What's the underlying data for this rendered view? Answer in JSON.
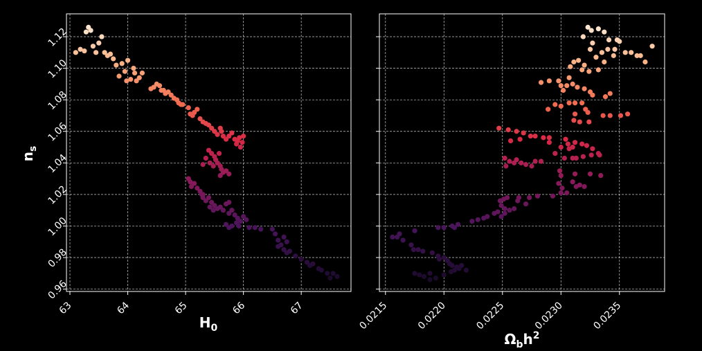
{
  "chart_data": [
    {
      "type": "scatter",
      "xlabel": {
        "main": "H",
        "sub": "0"
      },
      "ylabel": {
        "main": "n",
        "sub": "s"
      },
      "xlim": [
        62.94,
        67.86
      ],
      "ylim": [
        0.9585,
        1.1345
      ],
      "xticks": [
        "63",
        "64",
        "65",
        "66",
        "67"
      ],
      "xtick_values": [
        63,
        64,
        65,
        66,
        67
      ],
      "yticks": [
        "0.96",
        "0.98",
        "1.00",
        "1.02",
        "1.04",
        "1.06",
        "1.08",
        "1.10",
        "1.12"
      ],
      "ytick_values": [
        0.96,
        0.98,
        1.0,
        1.02,
        1.04,
        1.06,
        1.08,
        1.1,
        1.12
      ],
      "grid": true,
      "color_scale": "rocket (dark purple = low n_s, cream = high n_s)",
      "points": [
        [
          63.1,
          1.11
        ],
        [
          63.18,
          1.112
        ],
        [
          63.25,
          1.111
        ],
        [
          63.28,
          1.123
        ],
        [
          63.32,
          1.126
        ],
        [
          63.36,
          1.124
        ],
        [
          63.4,
          1.114
        ],
        [
          63.45,
          1.11
        ],
        [
          63.5,
          1.116
        ],
        [
          63.55,
          1.12
        ],
        [
          63.6,
          1.11
        ],
        [
          63.65,
          1.108
        ],
        [
          63.7,
          1.109
        ],
        [
          63.75,
          1.106
        ],
        [
          63.8,
          1.102
        ],
        [
          63.85,
          1.095
        ],
        [
          63.9,
          1.103
        ],
        [
          63.95,
          1.098
        ],
        [
          64.0,
          1.105
        ],
        [
          64.05,
          1.093
        ],
        [
          64.1,
          1.1
        ],
        [
          64.12,
          1.097
        ],
        [
          64.15,
          1.092
        ],
        [
          64.2,
          1.094
        ],
        [
          64.25,
          1.097
        ],
        [
          63.98,
          1.092
        ],
        [
          64.4,
          1.087
        ],
        [
          64.45,
          1.088
        ],
        [
          64.5,
          1.09
        ],
        [
          64.55,
          1.089
        ],
        [
          64.58,
          1.086
        ],
        [
          64.62,
          1.086
        ],
        [
          64.65,
          1.084
        ],
        [
          64.7,
          1.085
        ],
        [
          64.75,
          1.083
        ],
        [
          64.8,
          1.081
        ],
        [
          64.85,
          1.08
        ],
        [
          64.88,
          1.078
        ],
        [
          64.92,
          1.077
        ],
        [
          64.95,
          1.077
        ],
        [
          65.05,
          1.075
        ],
        [
          65.08,
          1.071
        ],
        [
          65.12,
          1.07
        ],
        [
          65.15,
          1.072
        ],
        [
          65.2,
          1.074
        ],
        [
          65.25,
          1.068
        ],
        [
          65.3,
          1.066
        ],
        [
          65.35,
          1.065
        ],
        [
          65.4,
          1.064
        ],
        [
          65.45,
          1.062
        ],
        [
          65.5,
          1.06
        ],
        [
          65.55,
          1.058
        ],
        [
          65.6,
          1.062
        ],
        [
          65.62,
          1.06
        ],
        [
          65.65,
          1.057
        ],
        [
          65.7,
          1.055
        ],
        [
          65.75,
          1.057
        ],
        [
          65.8,
          1.059
        ],
        [
          65.85,
          1.055
        ],
        [
          65.88,
          1.052
        ],
        [
          65.9,
          1.054
        ],
        [
          65.93,
          1.056
        ],
        [
          65.95,
          1.05
        ],
        [
          65.98,
          1.053
        ],
        [
          66.0,
          1.057
        ],
        [
          65.4,
          1.048
        ],
        [
          65.45,
          1.046
        ],
        [
          65.5,
          1.044
        ],
        [
          65.52,
          1.042
        ],
        [
          65.55,
          1.04
        ],
        [
          65.58,
          1.046
        ],
        [
          65.6,
          1.038
        ],
        [
          65.62,
          1.036
        ],
        [
          65.65,
          1.034
        ],
        [
          65.3,
          1.039
        ],
        [
          65.35,
          1.043
        ],
        [
          65.42,
          1.04
        ],
        [
          65.48,
          1.038
        ],
        [
          65.7,
          1.035
        ],
        [
          65.75,
          1.033
        ],
        [
          65.6,
          1.032
        ],
        [
          65.05,
          1.03
        ],
        [
          65.08,
          1.028
        ],
        [
          65.1,
          1.025
        ],
        [
          65.15,
          1.027
        ],
        [
          65.2,
          1.024
        ],
        [
          65.25,
          1.022
        ],
        [
          65.28,
          1.02
        ],
        [
          65.3,
          1.018
        ],
        [
          65.35,
          1.016
        ],
        [
          65.4,
          1.018
        ],
        [
          65.45,
          1.015
        ],
        [
          65.5,
          1.013
        ],
        [
          65.55,
          1.011
        ],
        [
          65.6,
          1.012
        ],
        [
          65.65,
          1.01
        ],
        [
          65.7,
          1.014
        ],
        [
          65.75,
          1.015
        ],
        [
          65.42,
          1.012
        ],
        [
          65.48,
          1.01
        ],
        [
          65.3,
          1.02
        ],
        [
          65.75,
          1.008
        ],
        [
          65.8,
          1.01
        ],
        [
          65.85,
          1.007
        ],
        [
          65.9,
          1.005
        ],
        [
          65.95,
          1.003
        ],
        [
          66.0,
          1.006
        ],
        [
          66.05,
          1.004
        ],
        [
          65.88,
          1.002
        ],
        [
          65.92,
          1.0
        ],
        [
          65.7,
          1.001
        ],
        [
          65.75,
          0.999
        ],
        [
          66.1,
          0.999
        ],
        [
          66.2,
          0.999
        ],
        [
          66.3,
          0.998
        ],
        [
          66.5,
          0.998
        ],
        [
          65.8,
          1.0
        ],
        [
          66.55,
          0.995
        ],
        [
          66.6,
          0.991
        ],
        [
          66.65,
          0.988
        ],
        [
          66.7,
          0.985
        ],
        [
          66.75,
          0.983
        ],
        [
          66.8,
          0.984
        ],
        [
          66.7,
          0.993
        ],
        [
          66.75,
          0.99
        ],
        [
          66.6,
          0.987
        ],
        [
          66.9,
          0.981
        ],
        [
          67.0,
          0.979
        ],
        [
          67.1,
          0.977
        ],
        [
          67.15,
          0.975
        ],
        [
          67.2,
          0.976
        ],
        [
          67.3,
          0.973
        ],
        [
          67.35,
          0.972
        ],
        [
          67.45,
          0.97
        ],
        [
          67.55,
          0.97
        ],
        [
          67.62,
          0.968
        ],
        [
          67.5,
          0.967
        ]
      ]
    },
    {
      "type": "scatter",
      "xlabel": {
        "main": "Ω",
        "sub": "b",
        "suffix": "h",
        "sup": "2"
      },
      "ylabel": null,
      "xlim": [
        0.021448,
        0.023886
      ],
      "ylim": [
        0.9585,
        1.1345
      ],
      "xticks": [
        "0.0215",
        "0.0220",
        "0.0225",
        "0.0230",
        "0.0235"
      ],
      "xtick_values": [
        0.0215,
        0.022,
        0.0225,
        0.023,
        0.0235
      ],
      "yticks": [],
      "ytick_values": [
        0.96,
        0.98,
        1.0,
        1.02,
        1.04,
        1.06,
        1.08,
        1.1,
        1.12
      ],
      "grid": true,
      "color_scale": "rocket (dark purple = low n_s, cream = high n_s)",
      "points": [
        [
          0.02323,
          1.126
        ],
        [
          0.02332,
          1.125
        ],
        [
          0.02337,
          1.123
        ],
        [
          0.02326,
          1.124
        ],
        [
          0.02319,
          1.12
        ],
        [
          0.02327,
          1.116
        ],
        [
          0.02341,
          1.118
        ],
        [
          0.02348,
          1.118
        ],
        [
          0.0235,
          1.117
        ],
        [
          0.0236,
          1.11
        ],
        [
          0.02355,
          1.11
        ],
        [
          0.02345,
          1.108
        ],
        [
          0.02335,
          1.11
        ],
        [
          0.0234,
          1.112
        ],
        [
          0.02346,
          1.112
        ],
        [
          0.02325,
          1.112
        ],
        [
          0.02365,
          1.108
        ],
        [
          0.02372,
          1.104
        ],
        [
          0.02368,
          1.108
        ],
        [
          0.02378,
          1.114
        ],
        [
          0.0233,
          1.107
        ],
        [
          0.02315,
          1.105
        ],
        [
          0.02308,
          1.101
        ],
        [
          0.02311,
          1.104
        ],
        [
          0.0232,
          1.102
        ],
        [
          0.02324,
          1.098
        ],
        [
          0.02318,
          1.099
        ],
        [
          0.02307,
          1.094
        ],
        [
          0.02337,
          1.104
        ],
        [
          0.02332,
          1.099
        ],
        [
          0.02283,
          1.091
        ],
        [
          0.0229,
          1.092
        ],
        [
          0.02298,
          1.092
        ],
        [
          0.023,
          1.089
        ],
        [
          0.02305,
          1.089
        ],
        [
          0.0231,
          1.09
        ],
        [
          0.02314,
          1.088
        ],
        [
          0.0232,
          1.087
        ],
        [
          0.02302,
          1.086
        ],
        [
          0.02325,
          1.085
        ],
        [
          0.02327,
          1.083
        ],
        [
          0.02338,
          1.082
        ],
        [
          0.02342,
          1.084
        ],
        [
          0.02312,
          1.078
        ],
        [
          0.02318,
          1.078
        ],
        [
          0.02307,
          1.078
        ],
        [
          0.023,
          1.076
        ],
        [
          0.02295,
          1.077
        ],
        [
          0.02289,
          1.074
        ],
        [
          0.02321,
          1.074
        ],
        [
          0.02323,
          1.072
        ],
        [
          0.02312,
          1.071
        ],
        [
          0.02336,
          1.07
        ],
        [
          0.02342,
          1.07
        ],
        [
          0.02351,
          1.07
        ],
        [
          0.02357,
          1.071
        ],
        [
          0.02311,
          1.067
        ],
        [
          0.02316,
          1.066
        ],
        [
          0.02324,
          1.066
        ],
        [
          0.02247,
          1.062
        ],
        [
          0.02255,
          1.061
        ],
        [
          0.02262,
          1.06
        ],
        [
          0.02268,
          1.059
        ],
        [
          0.02274,
          1.057
        ],
        [
          0.02278,
          1.057
        ],
        [
          0.02285,
          1.056
        ],
        [
          0.0229,
          1.056
        ],
        [
          0.02304,
          1.055
        ],
        [
          0.02312,
          1.053
        ],
        [
          0.02318,
          1.052
        ],
        [
          0.02322,
          1.051
        ],
        [
          0.02327,
          1.049
        ],
        [
          0.02332,
          1.046
        ],
        [
          0.02333,
          1.045
        ],
        [
          0.02326,
          1.045
        ],
        [
          0.02319,
          1.044
        ],
        [
          0.02313,
          1.043
        ],
        [
          0.0231,
          1.043
        ],
        [
          0.02303,
          1.043
        ],
        [
          0.02307,
          1.049
        ],
        [
          0.0231,
          1.05
        ],
        [
          0.02306,
          1.052
        ],
        [
          0.023,
          1.05
        ],
        [
          0.02295,
          1.046
        ],
        [
          0.0229,
          1.053
        ],
        [
          0.02265,
          1.055
        ],
        [
          0.02257,
          1.054
        ],
        [
          0.02252,
          1.043
        ],
        [
          0.02256,
          1.041
        ],
        [
          0.0226,
          1.04
        ],
        [
          0.02262,
          1.042
        ],
        [
          0.02266,
          1.04
        ],
        [
          0.0227,
          1.039
        ],
        [
          0.02275,
          1.038
        ],
        [
          0.02278,
          1.041
        ],
        [
          0.02283,
          1.041
        ],
        [
          0.02253,
          1.038
        ],
        [
          0.02299,
          1.035
        ],
        [
          0.02312,
          1.033
        ],
        [
          0.02325,
          1.033
        ],
        [
          0.02334,
          1.032
        ],
        [
          0.023,
          1.032
        ],
        [
          0.0231,
          1.028
        ],
        [
          0.02313,
          1.025
        ],
        [
          0.02316,
          1.026
        ],
        [
          0.0232,
          1.025
        ],
        [
          0.02298,
          1.027
        ],
        [
          0.02301,
          1.024
        ],
        [
          0.023,
          1.021
        ],
        [
          0.02305,
          1.021
        ],
        [
          0.02293,
          1.019
        ],
        [
          0.0228,
          1.019
        ],
        [
          0.02273,
          1.018
        ],
        [
          0.02264,
          1.018
        ],
        [
          0.02263,
          1.016
        ],
        [
          0.0227,
          1.014
        ],
        [
          0.02254,
          1.018
        ],
        [
          0.02251,
          1.017
        ],
        [
          0.02248,
          1.016
        ],
        [
          0.02249,
          1.013
        ],
        [
          0.02252,
          1.011
        ],
        [
          0.02256,
          1.01
        ],
        [
          0.0226,
          1.011
        ],
        [
          0.02246,
          1.009
        ],
        [
          0.02243,
          1.008
        ],
        [
          0.02252,
          1.008
        ],
        [
          0.02237,
          1.006
        ],
        [
          0.02234,
          1.005
        ],
        [
          0.02229,
          1.004
        ],
        [
          0.02224,
          1.003
        ],
        [
          0.02249,
          1.006
        ],
        [
          0.02212,
          1.001
        ],
        [
          0.02207,
          1.0
        ],
        [
          0.022,
          0.999
        ],
        [
          0.02195,
          0.999
        ],
        [
          0.02209,
          0.999
        ],
        [
          0.02175,
          0.997
        ],
        [
          0.02162,
          0.995
        ],
        [
          0.02156,
          0.993
        ],
        [
          0.0216,
          0.993
        ],
        [
          0.02165,
          0.991
        ],
        [
          0.02172,
          0.988
        ],
        [
          0.02178,
          0.985
        ],
        [
          0.02182,
          0.984
        ],
        [
          0.02174,
          0.985
        ],
        [
          0.0219,
          0.983
        ],
        [
          0.02195,
          0.981
        ],
        [
          0.022,
          0.98
        ],
        [
          0.02196,
          0.979
        ],
        [
          0.02203,
          0.978
        ],
        [
          0.02205,
          0.976
        ],
        [
          0.02207,
          0.975
        ],
        [
          0.02211,
          0.974
        ],
        [
          0.02215,
          0.975
        ],
        [
          0.02209,
          0.972
        ],
        [
          0.02206,
          0.971
        ],
        [
          0.02213,
          0.973
        ],
        [
          0.02219,
          0.972
        ],
        [
          0.02188,
          0.97
        ],
        [
          0.02183,
          0.968
        ],
        [
          0.02179,
          0.969
        ],
        [
          0.02193,
          0.967
        ],
        [
          0.022,
          0.969
        ],
        [
          0.02188,
          0.966
        ],
        [
          0.02175,
          0.97
        ]
      ]
    }
  ]
}
